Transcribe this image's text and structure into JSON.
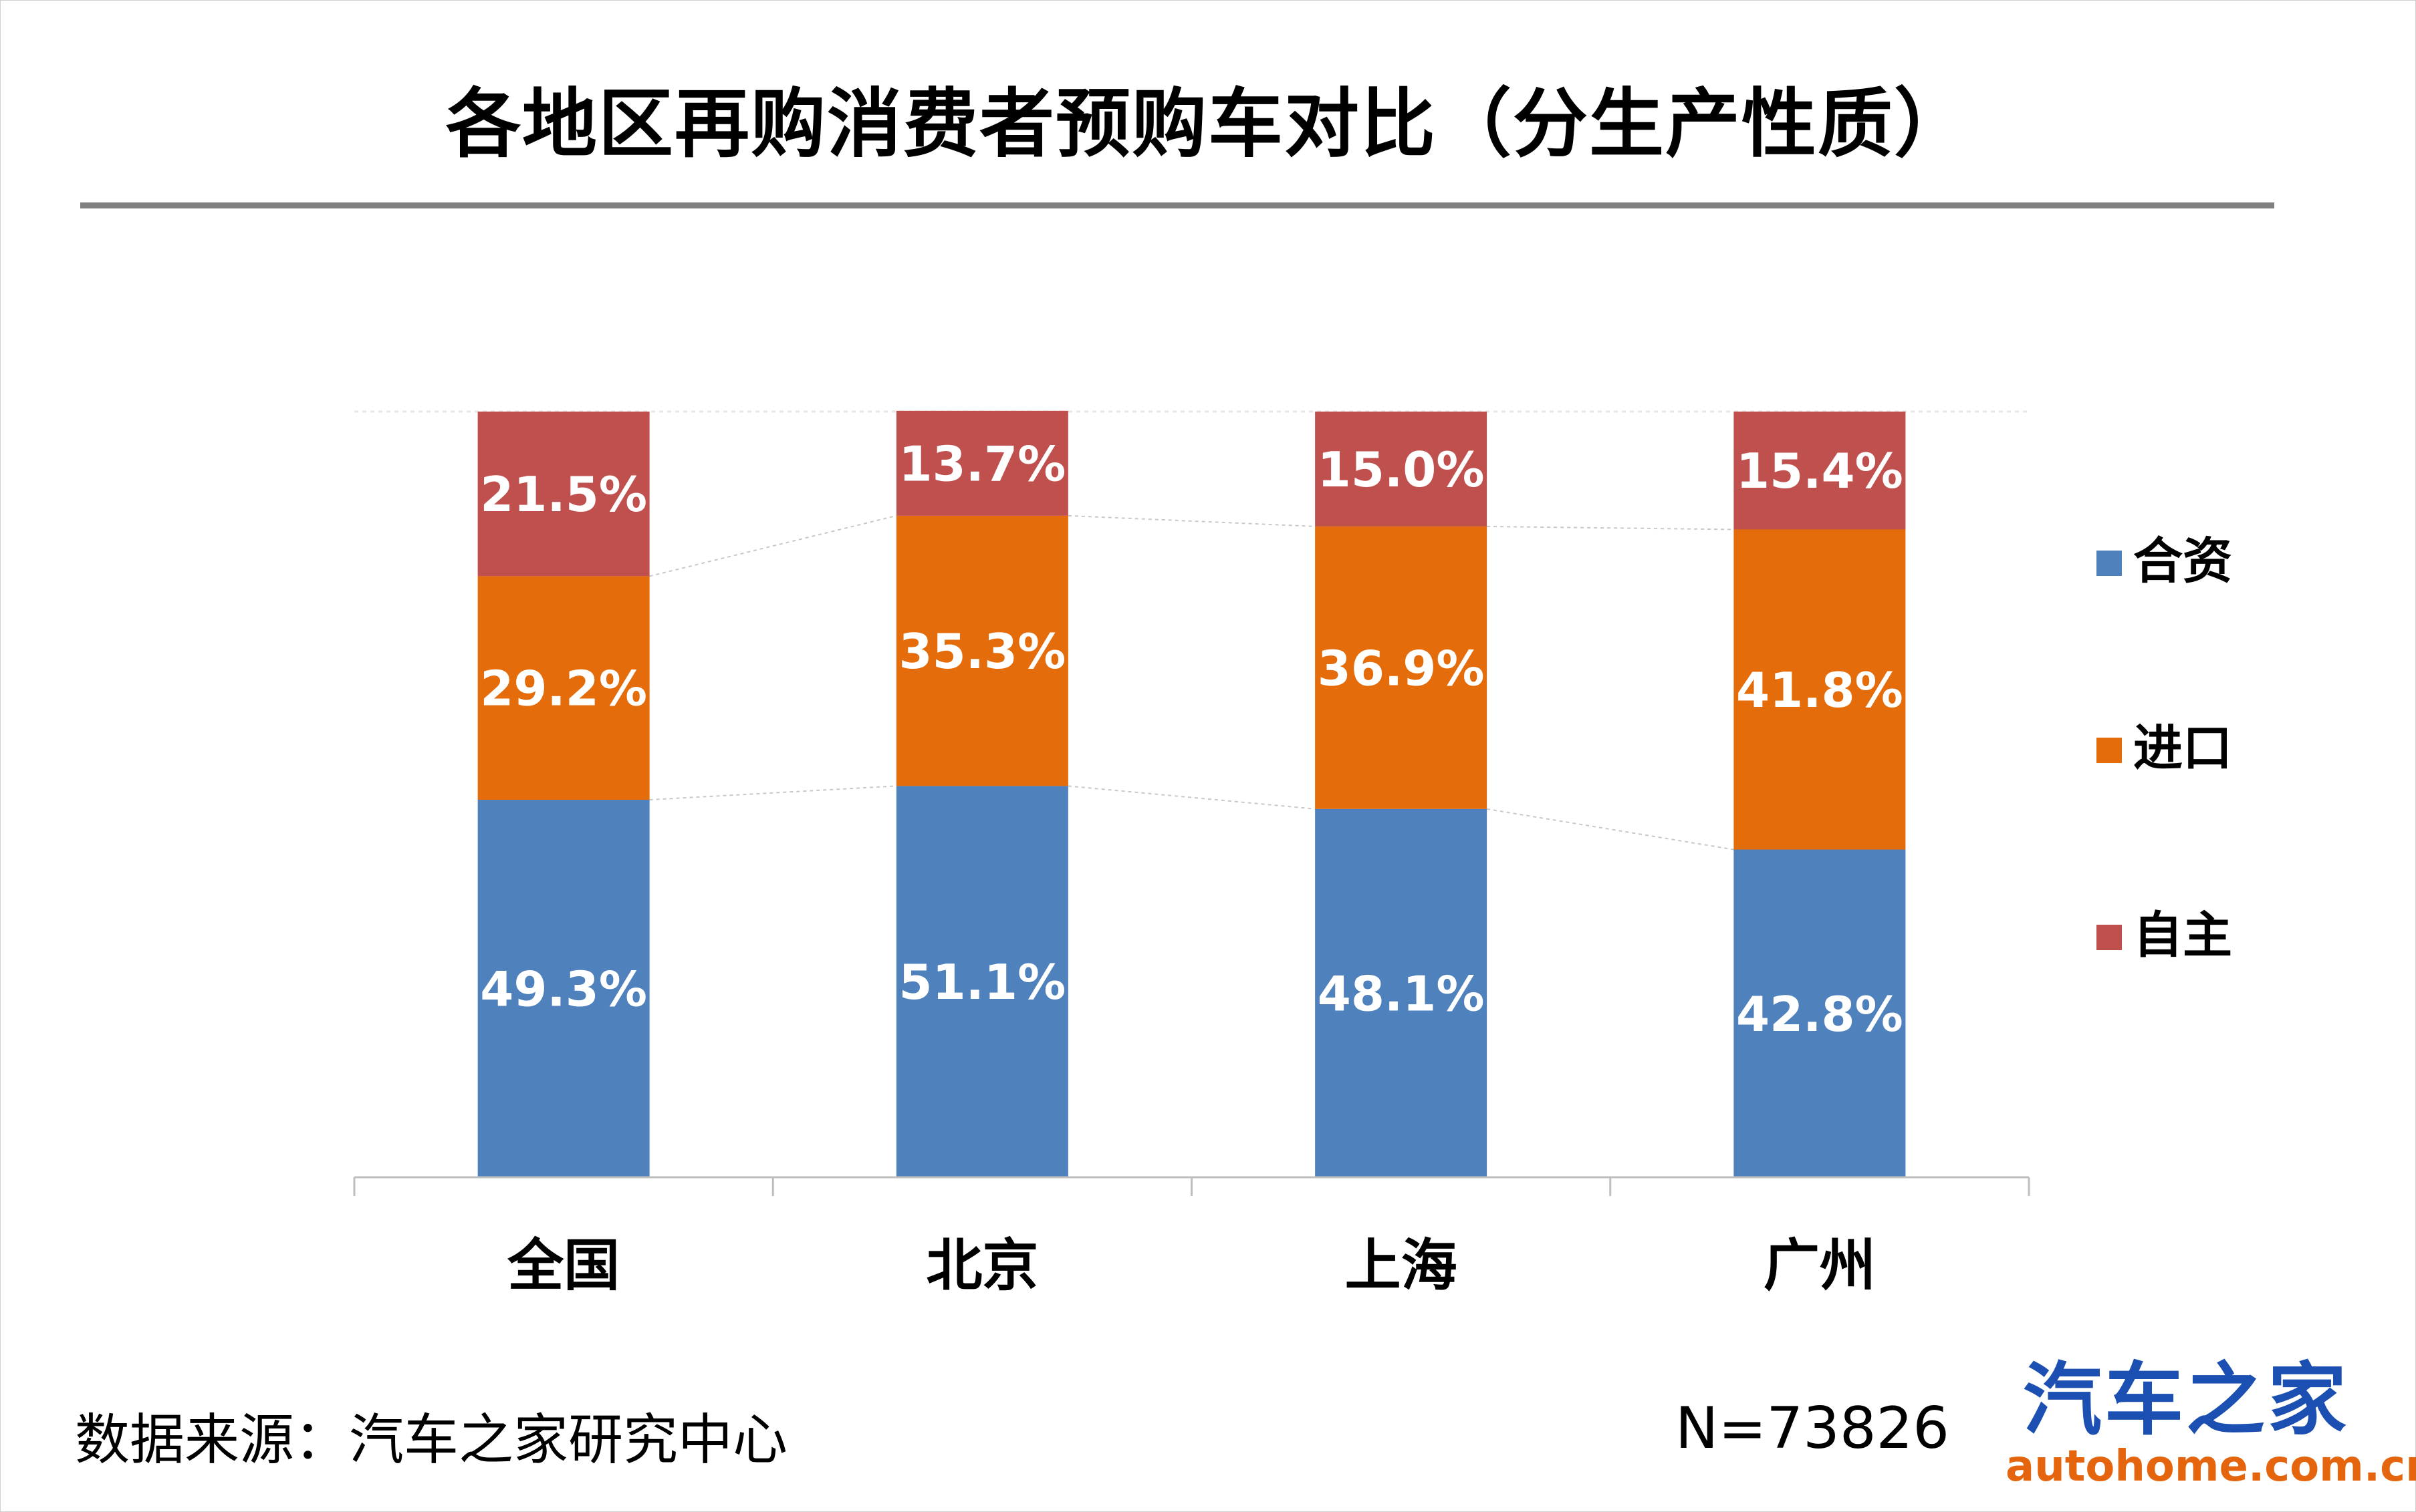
{
  "header": {
    "title": "各地区再购消费者预购车对比（分生产性质）"
  },
  "chart_data": {
    "type": "bar",
    "stacked": true,
    "title": "各地区再购消费者预购车对比（分生产性质）",
    "categories": [
      "全国",
      "北京",
      "上海",
      "广州"
    ],
    "series": [
      {
        "name": "合资",
        "color": "#4f81bd",
        "values": [
          49.3,
          51.1,
          48.1,
          42.8
        ],
        "labels": [
          "49.3%",
          "51.1%",
          "48.1%",
          "42.8%"
        ]
      },
      {
        "name": "进口",
        "color": "#e46c0a",
        "values": [
          29.2,
          35.3,
          36.9,
          41.8
        ],
        "labels": [
          "29.2%",
          "35.3%",
          "36.9%",
          "41.8%"
        ]
      },
      {
        "name": "自主",
        "color": "#c0504d",
        "values": [
          21.5,
          13.7,
          15.0,
          15.4
        ],
        "labels": [
          "21.5%",
          "13.7%",
          "15.0%",
          "15.4%"
        ]
      }
    ],
    "ylim": [
      0,
      100
    ],
    "series_lines": true,
    "legend_position": "right"
  },
  "legend": {
    "items": [
      {
        "label": "合资",
        "color": "#4f81bd"
      },
      {
        "label": "进口",
        "color": "#e46c0a"
      },
      {
        "label": "自主",
        "color": "#c0504d"
      }
    ]
  },
  "footer": {
    "source": "数据来源：汽车之家研究中心",
    "sample": "N=73826"
  },
  "logo": {
    "text_cn": "汽车之家",
    "text_en": "autohome.com.cn"
  }
}
